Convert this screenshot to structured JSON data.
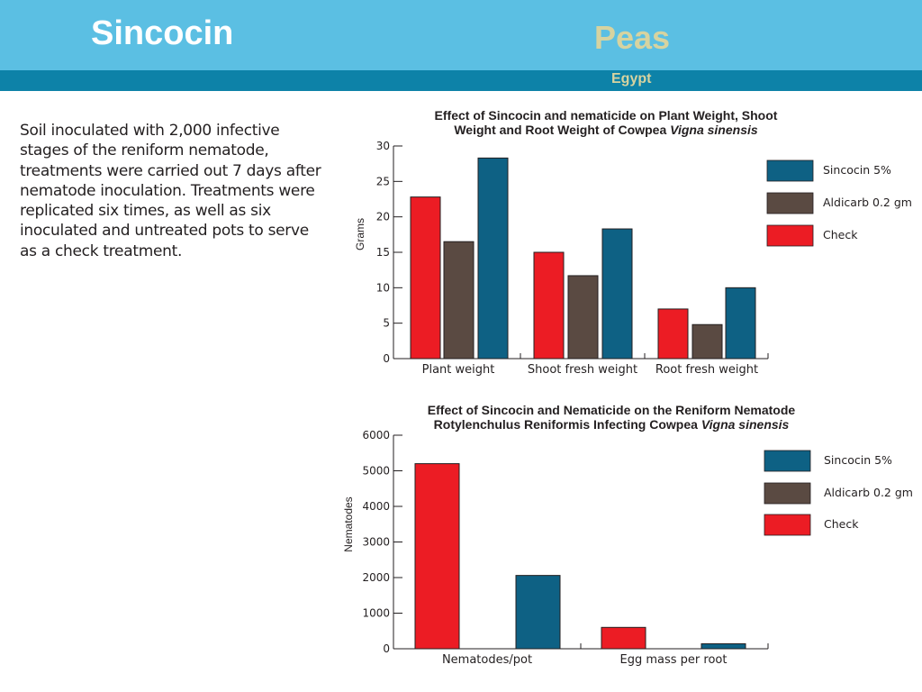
{
  "header": {
    "brand": "Sincocin",
    "crop": "Peas",
    "country": "Egypt"
  },
  "description": "Soil inoculated with 2,000 infective stages of the reniform nematode, treatments were carried out 7 days after nematode inoculation. Treatments were replicated six times, as well as six inoculated and untreated pots to serve as a check treatment.",
  "colors": {
    "sincocin": "#0e6184",
    "aldicarb": "#5a4a42",
    "check": "#ec1c24",
    "banner": "#5bbfe3",
    "sub_banner": "#0d82a8"
  },
  "chart_data": [
    {
      "type": "bar",
      "title_line1": "Effect of Sincocin and nematicide on Plant Weight, Shoot",
      "title_line2": "Weight and Root Weight of Cowpea",
      "title_italic": "Vigna sinensis",
      "ylabel": "Grams",
      "xlabel": "",
      "ylim": [
        0,
        30
      ],
      "yticks": [
        0,
        5,
        10,
        15,
        20,
        25,
        30
      ],
      "categories": [
        "Plant weight",
        "Shoot fresh weight",
        "Root fresh weight"
      ],
      "series": [
        {
          "name": "Check",
          "color": "#ec1c24",
          "values": [
            22.8,
            15,
            7
          ]
        },
        {
          "name": "Aldicarb 0.2 gm",
          "color": "#5a4a42",
          "values": [
            16.5,
            11.7,
            4.8
          ]
        },
        {
          "name": "Sincocin 5%",
          "color": "#0e6184",
          "values": [
            28.3,
            18.3,
            10
          ]
        }
      ],
      "legend_order": [
        "Sincocin 5%",
        "Aldicarb 0.2 gm",
        "Check"
      ],
      "legend_position": "right",
      "grid": false
    },
    {
      "type": "bar",
      "title_line1": "Effect of Sincocin and Nematicide on the Reniform Nematode",
      "title_line2": "Rotylenchulus Reniformis Infecting Cowpea",
      "title_italic": "Vigna sinensis",
      "ylabel": "Nematodes",
      "xlabel": "",
      "ylim": [
        0,
        6000
      ],
      "yticks": [
        0,
        1000,
        2000,
        3000,
        4000,
        5000,
        6000
      ],
      "categories": [
        "Nematodes/pot",
        "Egg mass per root"
      ],
      "series": [
        {
          "name": "Check",
          "color": "#ec1c24",
          "values": [
            5200,
            600
          ]
        },
        {
          "name": "Sincocin 5%",
          "color": "#0e6184",
          "values": [
            2060,
            140
          ]
        }
      ],
      "legend_order": [
        "Sincocin 5%",
        "Aldicarb 0.2 gm",
        "Check"
      ],
      "legend_colors": [
        "#0e6184",
        "#5a4a42",
        "#ec1c24"
      ],
      "legend_position": "right",
      "grid": false
    }
  ]
}
